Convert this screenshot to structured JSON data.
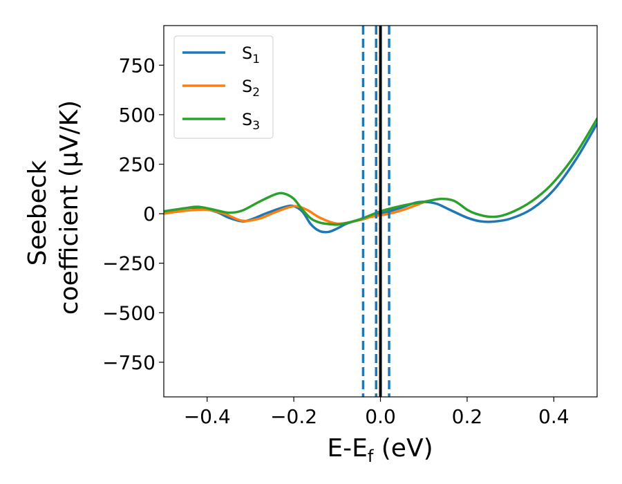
{
  "chart_data": {
    "type": "line",
    "title": "",
    "xlabel_main": "E-E",
    "xlabel_sub": "f",
    "xlabel_unit": " (eV)",
    "ylabel_line1": "Seebeck",
    "ylabel_line2": "coefficient  (μV/K)",
    "xlim": [
      -0.5,
      0.5
    ],
    "ylim": [
      -925,
      950
    ],
    "xticks": [
      -0.4,
      -0.2,
      0.0,
      0.2,
      0.4
    ],
    "xtick_labels": [
      "−0.4",
      "−0.2",
      "0.0",
      "0.2",
      "0.4"
    ],
    "yticks": [
      -750,
      -500,
      -250,
      0,
      250,
      500,
      750
    ],
    "ytick_labels": [
      "−750",
      "−500",
      "−250",
      "0",
      "250",
      "500",
      "750"
    ],
    "grid": false,
    "legend_position": "top-left",
    "series": [
      {
        "name": "S",
        "sub": "1",
        "color": "#1f77b4",
        "x": [
          -0.5,
          -0.45,
          -0.42,
          -0.38,
          -0.35,
          -0.32,
          -0.3,
          -0.26,
          -0.22,
          -0.2,
          -0.18,
          -0.16,
          -0.14,
          -0.12,
          -0.1,
          -0.08,
          -0.06,
          -0.04,
          -0.02,
          0.0,
          0.02,
          0.05,
          0.08,
          0.1,
          0.13,
          0.16,
          0.2,
          0.23,
          0.26,
          0.3,
          0.35,
          0.4,
          0.45,
          0.5
        ],
        "y": [
          10,
          28,
          28,
          10,
          -20,
          -38,
          -30,
          5,
          35,
          38,
          10,
          -55,
          -88,
          -92,
          -75,
          -52,
          -38,
          -28,
          -12,
          0,
          12,
          32,
          55,
          60,
          50,
          20,
          -20,
          -38,
          -40,
          -25,
          25,
          120,
          270,
          455
        ]
      },
      {
        "name": "S",
        "sub": "2",
        "color": "#ff7f0e",
        "x": [
          -0.5,
          -0.45,
          -0.4,
          -0.36,
          -0.32,
          -0.28,
          -0.24,
          -0.2,
          -0.17,
          -0.14,
          -0.1,
          -0.06,
          -0.02,
          0.02,
          0.06,
          0.1
        ],
        "y": [
          0,
          15,
          20,
          0,
          -35,
          -25,
          10,
          38,
          20,
          -20,
          -50,
          -38,
          -15,
          0,
          25,
          58
        ]
      },
      {
        "name": "S",
        "sub": "3",
        "color": "#2ca02c",
        "x": [
          -0.5,
          -0.45,
          -0.42,
          -0.38,
          -0.35,
          -0.32,
          -0.28,
          -0.24,
          -0.22,
          -0.2,
          -0.18,
          -0.16,
          -0.14,
          -0.12,
          -0.1,
          -0.08,
          -0.05,
          -0.02,
          0.0,
          0.03,
          0.06,
          0.1,
          0.14,
          0.17,
          0.2,
          0.22,
          0.25,
          0.28,
          0.32,
          0.36,
          0.4,
          0.45,
          0.5
        ],
        "y": [
          12,
          28,
          35,
          18,
          5,
          15,
          60,
          100,
          100,
          75,
          20,
          -25,
          -45,
          -52,
          -55,
          -48,
          -30,
          -5,
          12,
          30,
          45,
          60,
          75,
          65,
          20,
          0,
          -15,
          -10,
          25,
          80,
          160,
          300,
          480
        ]
      }
    ],
    "vlines": [
      {
        "x": -0.04,
        "style": "dashed",
        "color": "#1f77b4"
      },
      {
        "x": -0.01,
        "style": "dashed",
        "color": "#1f77b4"
      },
      {
        "x": 0.02,
        "style": "dashed",
        "color": "#1f77b4"
      },
      {
        "x": 0.0,
        "style": "solid",
        "color": "#000000"
      }
    ]
  }
}
